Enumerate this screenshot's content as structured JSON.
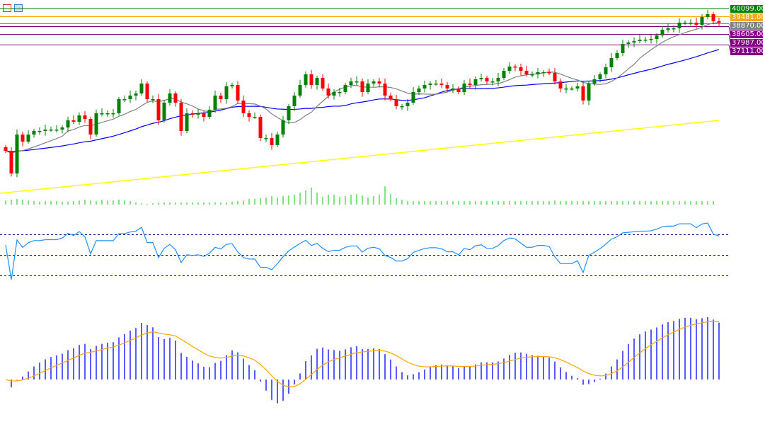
{
  "toolbar": {
    "icons": [
      "template-icon",
      "save-icon"
    ]
  },
  "price_levels": [
    {
      "label": "40099.00",
      "value": 40099,
      "color": "#008000"
    },
    {
      "label": "39481.00",
      "value": 39481,
      "color": "#ffa500"
    },
    {
      "label": "38870.00",
      "value": 38870,
      "color": "#808080"
    },
    {
      "label": "38605.00",
      "value": 38605,
      "color": "#800080"
    },
    {
      "label": "37987.00",
      "value": 37987,
      "color": "#800080"
    },
    {
      "label": "37111.00",
      "value": 37111,
      "color": "#800080"
    }
  ],
  "chart_data": {
    "type": "candlestick",
    "title": "",
    "colors": {
      "up": "#008000",
      "down": "#ff0000",
      "ma_fast": "#808080",
      "ma_mid": "#0000ff",
      "ma_slow": "#ffff00",
      "volume": "#32cd32",
      "rsi": "#1e90ff",
      "rsi_levels": "#000080",
      "macd_hist": "#0000ff",
      "macd_signal": "#ffa500"
    },
    "closes": [
      28320,
      26445,
      29668,
      29082,
      29668,
      29961,
      29961,
      30078,
      30078,
      30078,
      30254,
      30840,
      30723,
      31250,
      30957,
      29668,
      31426,
      31426,
      31426,
      31426,
      32598,
      32598,
      32891,
      33067,
      33887,
      32598,
      32598,
      30840,
      32305,
      33067,
      32305,
      29961,
      31426,
      31309,
      31426,
      31133,
      31719,
      32891,
      32598,
      33653,
      33770,
      32481,
      31426,
      31133,
      31133,
      29375,
      29375,
      28789,
      29668,
      30840,
      32012,
      32891,
      33770,
      34649,
      33770,
      34356,
      33477,
      32891,
      33184,
      33184,
      33770,
      34063,
      34063,
      33184,
      33887,
      34063,
      33887,
      32891,
      32598,
      32012,
      32012,
      32305,
      33184,
      33477,
      33770,
      33887,
      33887,
      33770,
      33477,
      33477,
      33184,
      33887,
      33770,
      34239,
      34356,
      34063,
      34063,
      34356,
      34942,
      35294,
      35235,
      34942,
      34649,
      34649,
      34825,
      34825,
      34766,
      34063,
      33477,
      33477,
      33477,
      33653,
      32481,
      33887,
      34239,
      34649,
      35235,
      35997,
      36407,
      37169,
      37286,
      37403,
      37520,
      37520,
      37579,
      37872,
      38341,
      38458,
      38458,
      38927,
      38927,
      38927,
      38751,
      39396,
      39630,
      39044,
      38927
    ],
    "volumes": [
      6,
      7,
      8,
      7,
      6,
      5,
      4,
      5,
      5,
      5,
      4,
      4,
      5,
      6,
      7,
      6,
      5,
      7,
      6,
      6,
      7,
      6,
      5,
      3,
      2,
      1,
      2,
      3,
      3,
      3,
      3,
      3,
      3,
      3,
      3,
      3,
      3,
      3,
      3,
      3,
      4,
      5,
      6,
      8,
      8,
      9,
      10,
      12,
      10,
      12,
      13,
      14,
      17,
      20,
      24,
      17,
      11,
      14,
      14,
      11,
      12,
      14,
      15,
      13,
      10,
      12,
      14,
      26,
      15,
      9,
      7,
      5,
      5,
      5,
      5,
      5,
      5,
      5,
      5,
      5,
      5,
      5,
      5,
      5,
      5,
      5,
      5,
      5,
      5,
      5,
      5,
      5,
      5,
      5,
      5,
      5,
      5,
      6,
      5,
      5,
      5,
      5,
      5,
      5,
      5,
      5,
      5,
      5,
      5,
      5,
      5,
      5,
      5,
      5,
      5,
      5,
      5,
      5,
      5,
      5,
      5,
      5,
      5,
      5,
      5,
      5
    ],
    "ma_slow_range": [
      24804,
      30840
    ],
    "ma_periods": {
      "fast": 10,
      "mid": 30,
      "slow": 200
    },
    "rsi": {
      "period": 14,
      "levels": [
        70,
        50,
        30
      ],
      "range": [
        20,
        80
      ]
    },
    "macd": {
      "fast": 12,
      "slow": 26,
      "signal": 9
    }
  }
}
